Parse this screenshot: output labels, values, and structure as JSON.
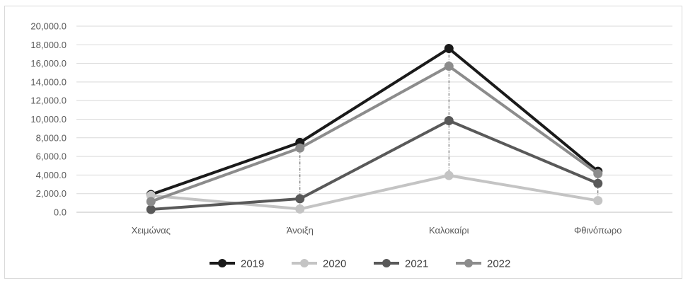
{
  "chart_data": {
    "type": "line",
    "title": "",
    "xlabel": "",
    "ylabel": "",
    "categories": [
      "Χειμώνας",
      "Άνοιξη",
      "Καλοκαίρι",
      "Φθινόπωρο"
    ],
    "ylim": [
      0,
      20000
    ],
    "yticks": [
      "0.0",
      "2,000.0",
      "4,000.0",
      "6,000.0",
      "8,000.0",
      "10,000.0",
      "12,000.0",
      "14,000.0",
      "16,000.0",
      "18,000.0",
      "20,000.0"
    ],
    "grid": true,
    "drop_lines": true,
    "legend": "bottom",
    "series": [
      {
        "name": "2019",
        "values": [
          1900,
          7500,
          17600,
          4400
        ],
        "color": "#1a1a1a"
      },
      {
        "name": "2020",
        "values": [
          1800,
          350,
          3950,
          1250
        ],
        "color": "#c4c4c4"
      },
      {
        "name": "2021",
        "values": [
          300,
          1450,
          9850,
          3100
        ],
        "color": "#595959"
      },
      {
        "name": "2022",
        "values": [
          1150,
          6900,
          15700,
          4150
        ],
        "color": "#8c8c8c"
      }
    ]
  }
}
